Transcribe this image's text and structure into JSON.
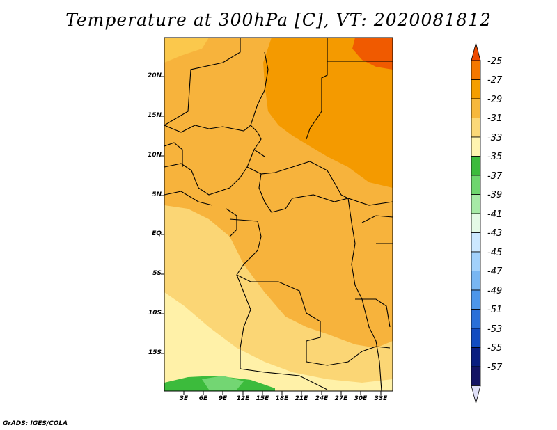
{
  "title": "Temperature at 300hPa [C], VT: 2020081812",
  "credit": "GrADS: IGES/COLA",
  "y_ticks": [
    "20N",
    "15N",
    "10N",
    "5N",
    "EQ",
    "5S",
    "10S",
    "15S"
  ],
  "x_ticks": [
    "3E",
    "6E",
    "9E",
    "12E",
    "15E",
    "18E",
    "21E",
    "24E",
    "27E",
    "30E",
    "33E"
  ],
  "colorbar": {
    "labels": [
      "-25",
      "-27",
      "-29",
      "-31",
      "-33",
      "-35",
      "-37",
      "-39",
      "-41",
      "-43",
      "-45",
      "-47",
      "-49",
      "-51",
      "-53",
      "-55",
      "-57"
    ],
    "colors": [
      "#ee4a00",
      "#f47800",
      "#f59e00",
      "#f7b83c",
      "#fbd878",
      "#fff4b0",
      "#3cbb3c",
      "#6ed66e",
      "#a6eaa6",
      "#e4fae6",
      "#cce8ff",
      "#a2d1fb",
      "#78b6f2",
      "#4c96ea",
      "#2a70d8",
      "#124cc0",
      "#0a1e80",
      "#141464",
      "#e0e0f8"
    ]
  },
  "colors": {
    "orange_dark": "#f49a00",
    "orange": "#f7b33c",
    "yellow": "#fbd675",
    "pale": "#fff1a8",
    "green": "#3cbb3c",
    "light_green": "#73d673",
    "red": "#f05a00"
  }
}
